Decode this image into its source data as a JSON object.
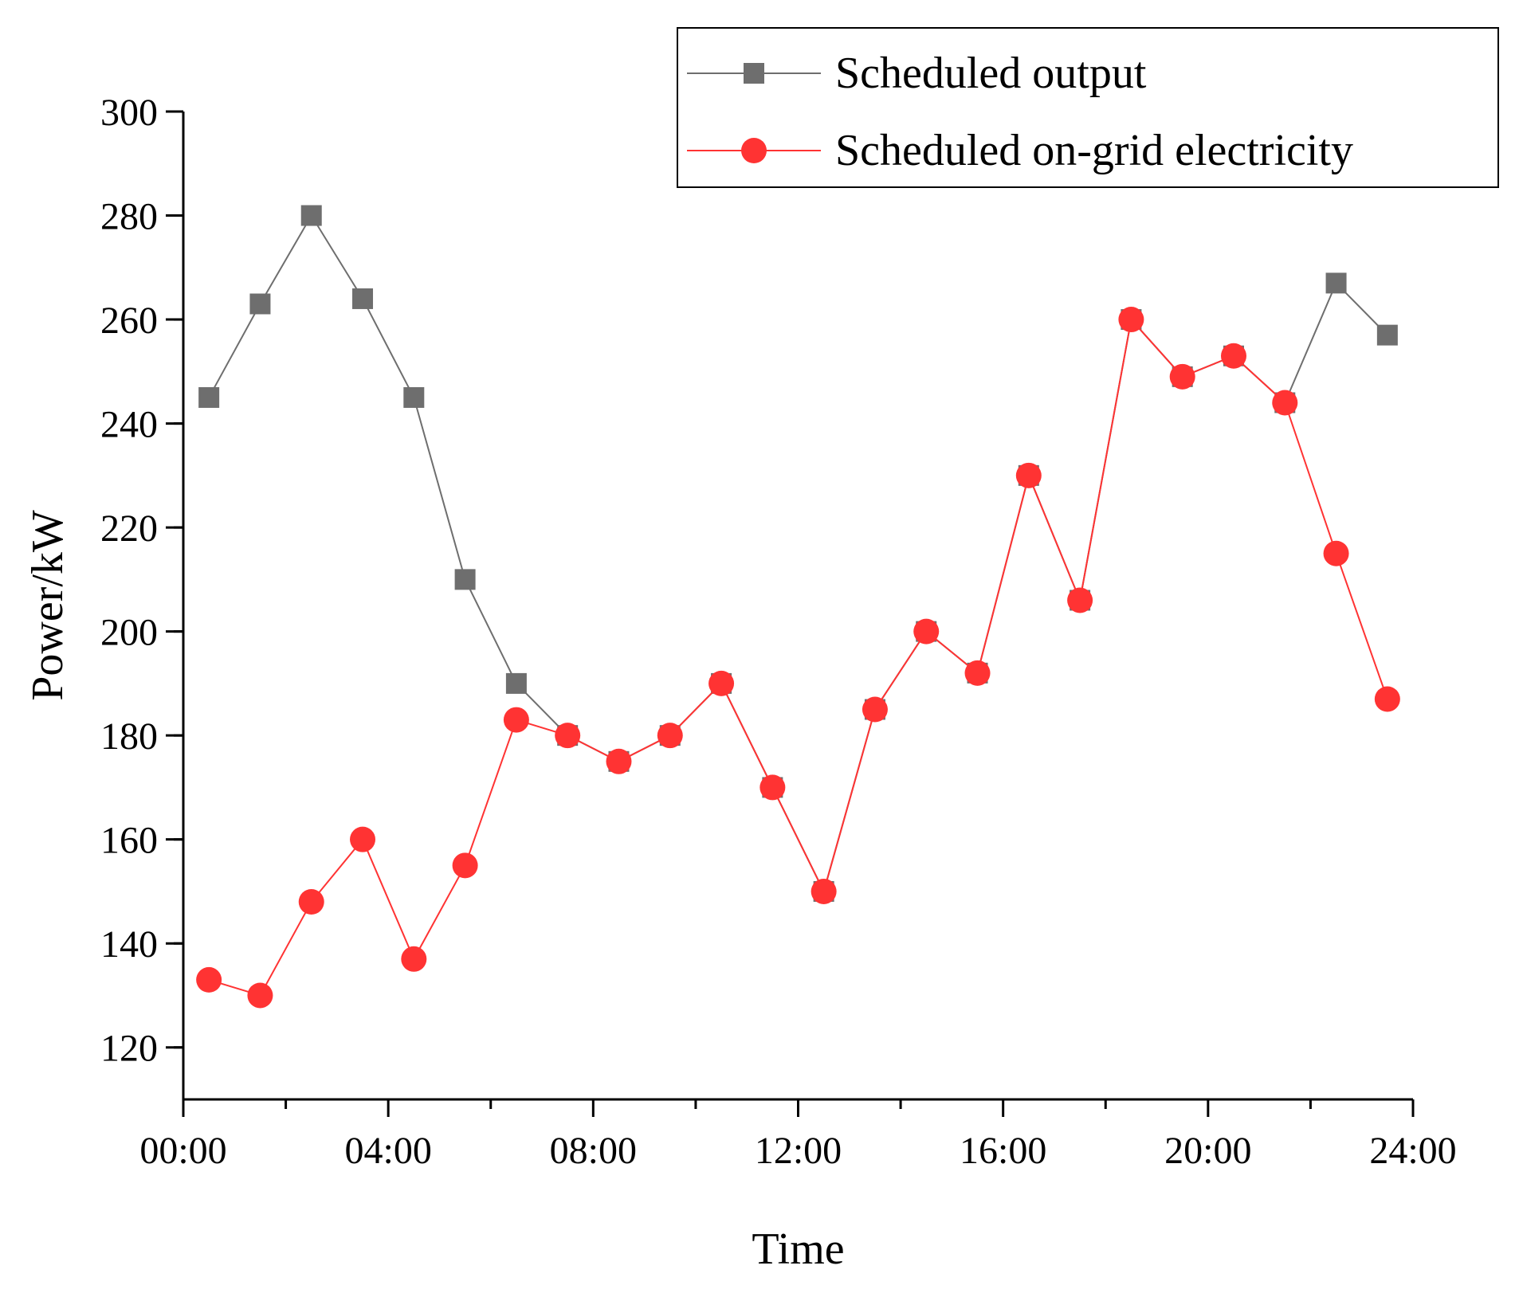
{
  "chart_data": {
    "type": "line",
    "title": "",
    "xlabel": "Time",
    "ylabel": "Power/kW",
    "xlim": [
      0,
      24
    ],
    "ylim": [
      110,
      300
    ],
    "x_tick_values": [
      0,
      4,
      8,
      12,
      16,
      20,
      24
    ],
    "x_tick_labels": [
      "00:00",
      "04:00",
      "08:00",
      "12:00",
      "16:00",
      "20:00",
      "24:00"
    ],
    "y_tick_values": [
      120,
      140,
      160,
      180,
      200,
      220,
      240,
      260,
      280,
      300
    ],
    "y_tick_labels": [
      "120",
      "140",
      "160",
      "180",
      "200",
      "220",
      "240",
      "260",
      "280",
      "300"
    ],
    "x": [
      0.5,
      1.5,
      2.5,
      3.5,
      4.5,
      5.5,
      6.5,
      7.5,
      8.5,
      9.5,
      10.5,
      11.5,
      12.5,
      13.5,
      14.5,
      15.5,
      16.5,
      17.5,
      18.5,
      19.5,
      20.5,
      21.5,
      22.5,
      23.5
    ],
    "series": [
      {
        "name": "Scheduled output",
        "color": "#6e6e6e",
        "marker": "square",
        "values": [
          245,
          263,
          280,
          264,
          245,
          210,
          190,
          180,
          175,
          180,
          190,
          170,
          150,
          185,
          200,
          192,
          230,
          206,
          260,
          249,
          253,
          244,
          267,
          257
        ]
      },
      {
        "name": "Scheduled on-grid electricity",
        "color": "#ff3333",
        "marker": "circle",
        "values": [
          133,
          130,
          148,
          160,
          137,
          155,
          183,
          180,
          175,
          180,
          190,
          170,
          150,
          185,
          200,
          192,
          230,
          206,
          260,
          249,
          253,
          244,
          215,
          187
        ]
      }
    ],
    "legend_position": "top-right",
    "grid": false
  }
}
